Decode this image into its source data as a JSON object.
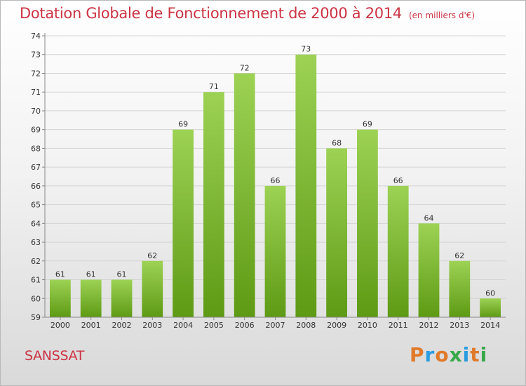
{
  "header": {
    "title": "Dotation Globale de Fonctionnement de 2000 à 2014",
    "subtitle": "(en milliers d'€)"
  },
  "commune": "SANSSAT",
  "logo": {
    "text": "Proxiti",
    "letter_colors": [
      "#e07a2a",
      "#2a9de0",
      "#e07a2a",
      "#3aa84a",
      "#2a9de0",
      "#e07a2a",
      "#3aa84a"
    ]
  },
  "chart_data": {
    "type": "bar",
    "categories": [
      "2000",
      "2001",
      "2002",
      "2003",
      "2004",
      "2005",
      "2006",
      "2007",
      "2008",
      "2009",
      "2010",
      "2011",
      "2012",
      "2013",
      "2014"
    ],
    "values": [
      61,
      61,
      61,
      62,
      69,
      71,
      72,
      66,
      73,
      68,
      69,
      66,
      64,
      62,
      60
    ],
    "data_labels": [
      "61",
      "61",
      "61",
      "62",
      "69",
      "71",
      "72",
      "66",
      "73",
      "68",
      "69",
      "66",
      "64",
      "62",
      "60"
    ],
    "ylim": [
      59,
      74
    ],
    "yticks": [
      59,
      60,
      61,
      62,
      63,
      64,
      65,
      66,
      67,
      68,
      69,
      70,
      71,
      72,
      73,
      74
    ],
    "grid": true,
    "bar_color_top": "#9dd255",
    "bar_color_bottom": "#5e9a14"
  }
}
